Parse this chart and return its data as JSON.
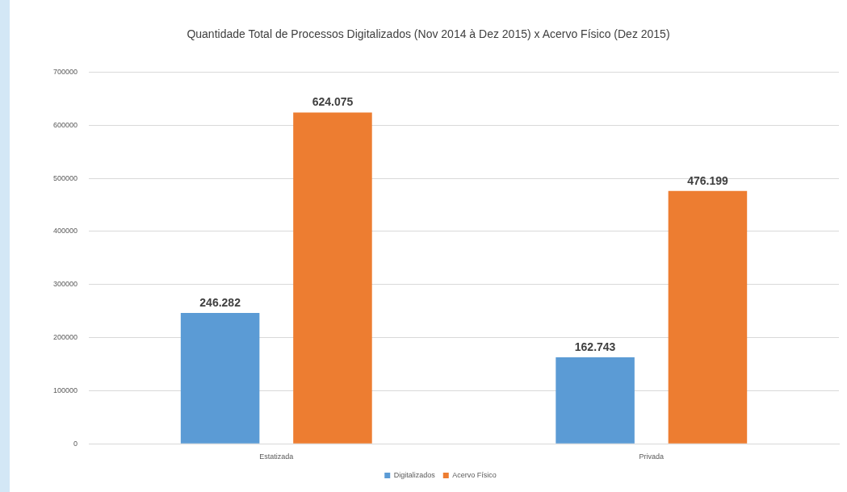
{
  "chart_data": {
    "type": "bar",
    "title": "Quantidade Total de Processos Digitalizados (Nov 2014 à Dez 2015) x Acervo Físico (Dez 2015)",
    "categories": [
      "Estatizada",
      "Privada"
    ],
    "series": [
      {
        "name": "Digitalizados",
        "color": "#5b9bd5",
        "values": [
          246282,
          162743
        ],
        "value_labels": [
          "246.282",
          "162.743"
        ]
      },
      {
        "name": "Acervo Físico",
        "color": "#ed7d31",
        "values": [
          624075,
          476199
        ],
        "value_labels": [
          "624.075",
          "476.199"
        ]
      }
    ],
    "ylim": [
      0,
      700000
    ],
    "yticks": [
      0,
      100000,
      200000,
      300000,
      400000,
      500000,
      600000,
      700000
    ],
    "grid": "y",
    "legend": "bottom"
  }
}
